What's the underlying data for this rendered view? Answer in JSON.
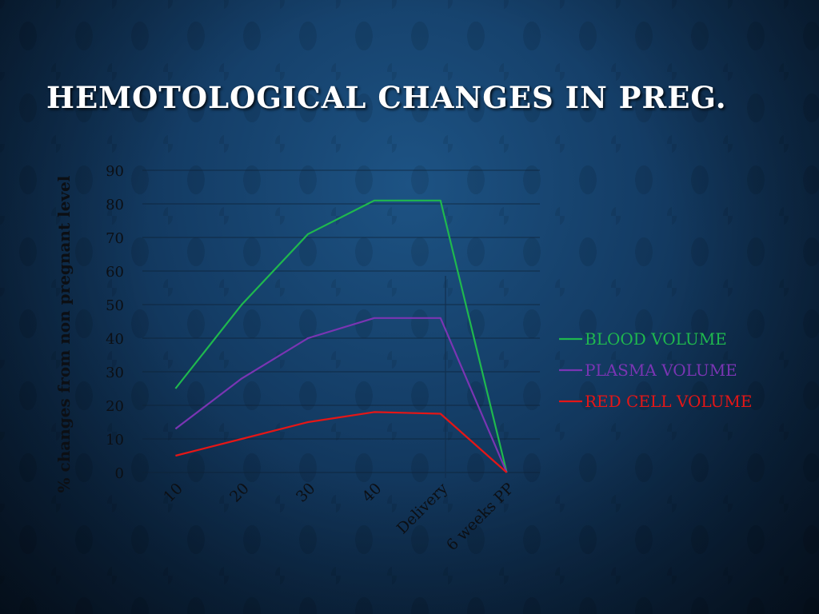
{
  "slide": {
    "title": "HEMOTOLOGICAL CHANGES IN PREG."
  },
  "chart_data": {
    "type": "line",
    "title": "",
    "xlabel": "",
    "ylabel": "% changes from non pregnant level",
    "ylim": [
      0,
      90
    ],
    "y_ticks": [
      "0",
      "10",
      "20",
      "30",
      "40",
      "50",
      "60",
      "70",
      "80",
      "90"
    ],
    "categories": [
      "10",
      "20",
      "30",
      "40",
      "Delivery",
      "6 weeks PP"
    ],
    "grid": true,
    "legend_position": "right",
    "series": [
      {
        "name": "BLOOD VOLUME",
        "color": "#1fb84e",
        "values": [
          25,
          50,
          71,
          81,
          81,
          0
        ]
      },
      {
        "name": "PLASMA VOLUME",
        "color": "#7a35b3",
        "values": [
          13,
          28,
          40,
          46,
          46,
          0
        ]
      },
      {
        "name": "RED CELL VOLUME",
        "color": "#e51616",
        "values": [
          5,
          10,
          15,
          18,
          17.5,
          0
        ]
      }
    ]
  }
}
